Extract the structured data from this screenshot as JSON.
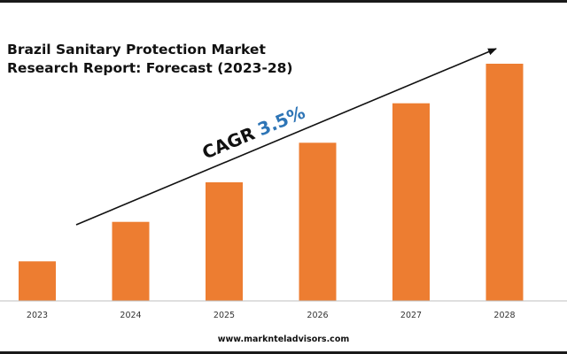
{
  "title_line1": "Brazil Sanitary Protection Market",
  "title_line2": "Research Report: Forecast (2023-28)",
  "cagr_label": "CAGR",
  "cagr_value": "3.5%",
  "website": "www.marknteladvisors.com",
  "colors": {
    "bar": "#ED7D31",
    "cagr_value": "#2E75B6",
    "text": "#111111",
    "axis": "#BFBFBF"
  },
  "chart_data": {
    "type": "bar",
    "categories": [
      "2023",
      "2024",
      "2025",
      "2026",
      "2027",
      "2028"
    ],
    "values": [
      1.0,
      2.0,
      3.0,
      4.0,
      5.0,
      6.0
    ],
    "title": "Brazil Sanitary Protection Market Research Report: Forecast (2023-28)",
    "xlabel": "",
    "ylabel": "",
    "ylim": [
      0,
      6.3
    ],
    "grid": false,
    "annotation": "CAGR 3.5%"
  }
}
